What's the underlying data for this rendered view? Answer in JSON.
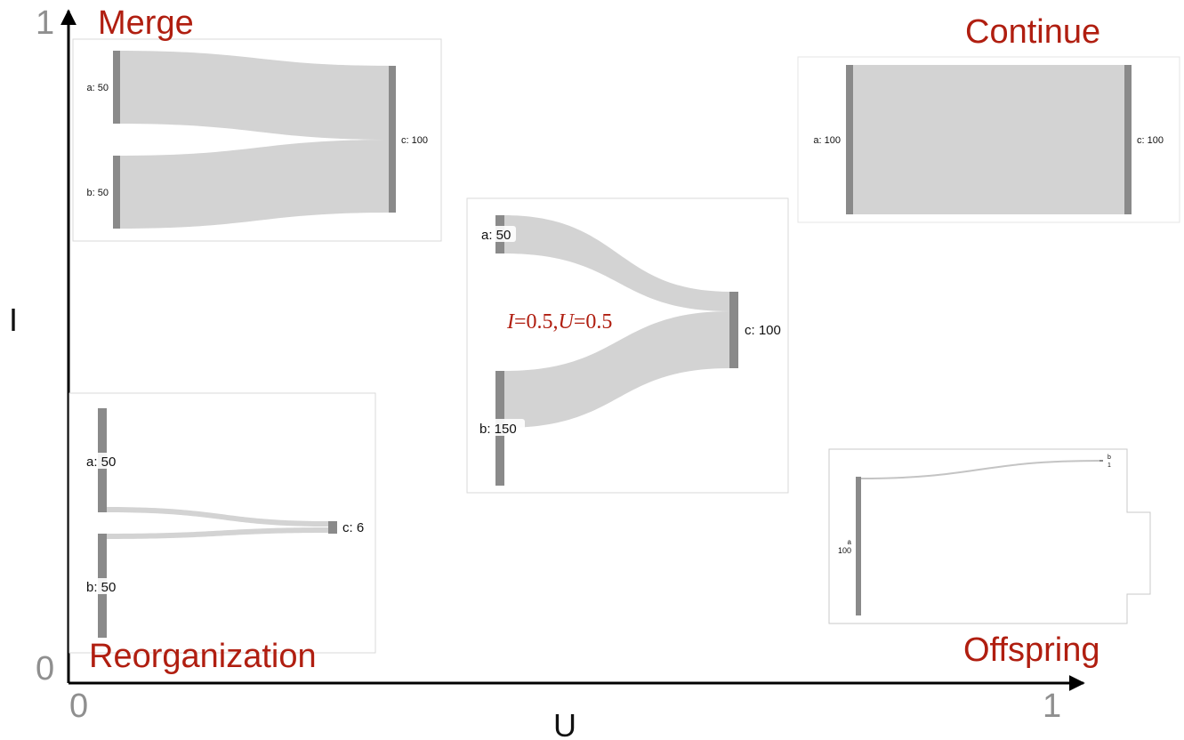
{
  "axes": {
    "x_label": "U",
    "y_label": "I",
    "x_min": "0",
    "x_max": "1",
    "y_min": "0",
    "y_max": "1"
  },
  "panels": {
    "merge": {
      "title": "Merge",
      "nodes": {
        "a": "a: 50",
        "b": "b: 50",
        "c": "c: 100"
      }
    },
    "continue": {
      "title": "Continue",
      "nodes": {
        "a": "a: 100",
        "c": "c: 100"
      }
    },
    "center": {
      "param_I": "I",
      "param_I_val": "=0.5,",
      "param_U": "U",
      "param_U_val": "=0.5",
      "nodes": {
        "a": "a: 50",
        "b": "b: 150",
        "c": "c: 100"
      }
    },
    "reorganization": {
      "title": "Reorganization",
      "nodes": {
        "a": "a: 50",
        "b": "b: 50",
        "c": "c: 6"
      }
    },
    "offspring": {
      "title": "Offspring",
      "nodes": {
        "a_name": "a",
        "a_val": "100",
        "b_name": "b",
        "b_val": "1"
      }
    }
  },
  "colors": {
    "title": "#b01e10",
    "flow": "#d3d3d3",
    "node": "#8a8a8a",
    "axis": "#000000",
    "frame": "#d9d9d9"
  }
}
